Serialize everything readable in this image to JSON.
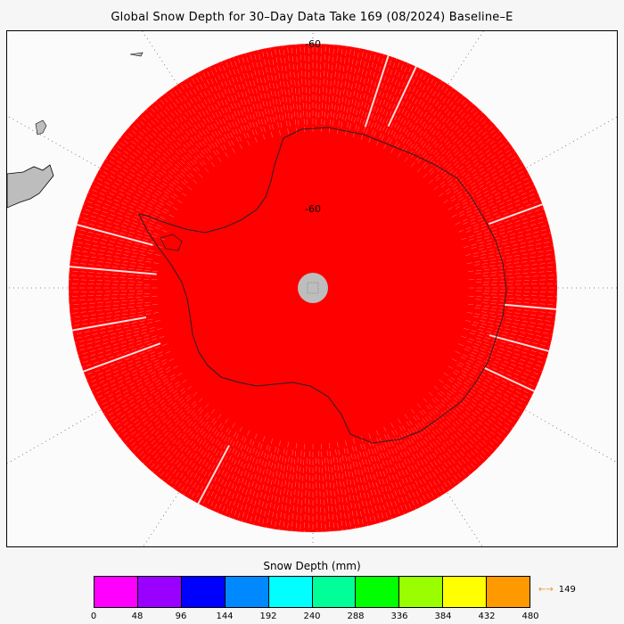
{
  "title": "Global Snow Depth for 30–Day Data Take 169 (08/2024) Baseline–E",
  "map": {
    "projection": "south-polar-stereographic",
    "latitude_labels": [
      "-60",
      "-60"
    ],
    "data_fill_color": "#ff0000",
    "land_color": "#bdbdbd",
    "pole_hole_color": "#bdbdbd"
  },
  "colorbar": {
    "title": "Snow Depth (mm)",
    "ticks": [
      "0",
      "48",
      "96",
      "144",
      "192",
      "240",
      "288",
      "336",
      "384",
      "432",
      "480"
    ],
    "colors": [
      "#ff00ff",
      "#9900ff",
      "#0000ff",
      "#0088ff",
      "#00ffff",
      "#00ff99",
      "#00ff00",
      "#99ff00",
      "#ffff00",
      "#ff9900"
    ],
    "overflow_arrow": "←→",
    "overflow_value": "149",
    "overflow_color": "#ff0000"
  }
}
